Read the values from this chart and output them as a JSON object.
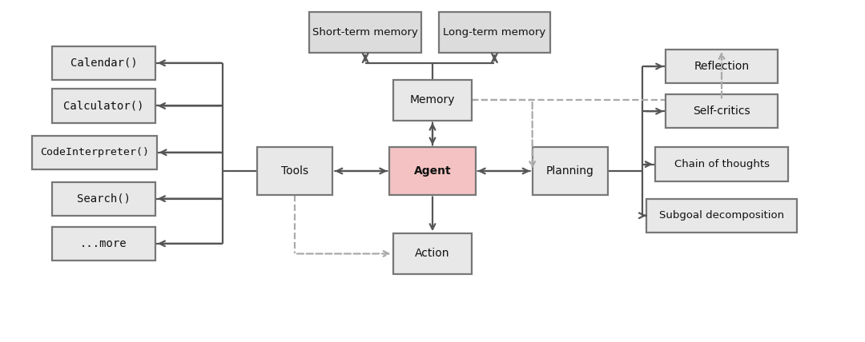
{
  "bg_color": "#ffffff",
  "box_edge_color": "#777777",
  "box_fill_default": "#e8e8e8",
  "box_fill_agent": "#f4c2c2",
  "box_fill_top": "#dcdcdc",
  "text_color": "#111111",
  "arrow_color": "#555555",
  "dashed_color": "#aaaaaa",
  "boxes": {
    "agent": [
      0.5,
      0.5,
      0.1,
      0.14
    ],
    "memory": [
      0.5,
      0.71,
      0.092,
      0.12
    ],
    "tools": [
      0.34,
      0.5,
      0.088,
      0.14
    ],
    "planning": [
      0.66,
      0.5,
      0.088,
      0.14
    ],
    "action": [
      0.5,
      0.255,
      0.092,
      0.12
    ],
    "short_mem": [
      0.422,
      0.91,
      0.13,
      0.12
    ],
    "long_mem": [
      0.572,
      0.91,
      0.13,
      0.12
    ],
    "calendar": [
      0.118,
      0.82,
      0.12,
      0.1
    ],
    "calculator": [
      0.118,
      0.693,
      0.12,
      0.1
    ],
    "codeinterp": [
      0.107,
      0.555,
      0.145,
      0.1
    ],
    "search": [
      0.118,
      0.418,
      0.12,
      0.1
    ],
    "more": [
      0.118,
      0.285,
      0.12,
      0.1
    ],
    "reflection": [
      0.836,
      0.81,
      0.13,
      0.1
    ],
    "selfcritics": [
      0.836,
      0.677,
      0.13,
      0.1
    ],
    "chainofth": [
      0.836,
      0.52,
      0.155,
      0.1
    ],
    "subgoal": [
      0.836,
      0.368,
      0.175,
      0.1
    ]
  },
  "labels": {
    "agent": "Agent",
    "memory": "Memory",
    "tools": "Tools",
    "planning": "Planning",
    "action": "Action",
    "short_mem": "Short-term memory",
    "long_mem": "Long-term memory",
    "calendar": "Calendar()",
    "calculator": "Calculator()",
    "codeinterp": "CodeInterpreter()",
    "search": "Search()",
    "more": "...more",
    "reflection": "Reflection",
    "selfcritics": "Self-critics",
    "chainofth": "Chain of thoughts",
    "subgoal": "Subgoal decomposition"
  },
  "monospace_boxes": [
    "calendar",
    "calculator",
    "codeinterp",
    "search",
    "more"
  ],
  "bold_boxes": [
    "agent"
  ],
  "top_boxes": [
    "short_mem",
    "long_mem"
  ]
}
